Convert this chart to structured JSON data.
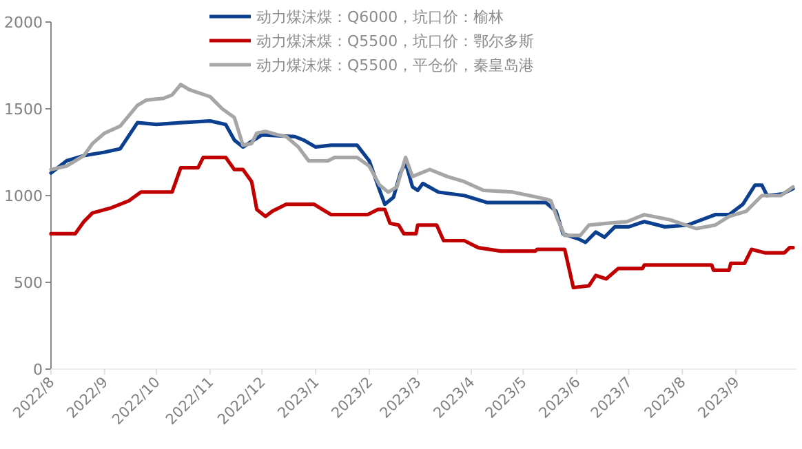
{
  "chart_data": {
    "type": "line",
    "ylim": [
      0,
      2000
    ],
    "yticks": [
      0,
      500,
      1000,
      1500,
      2000
    ],
    "xlim": [
      "2022-08-01",
      "2023-10-06"
    ],
    "xticks": [
      {
        "value": "2022-08-01",
        "label": "2022/8"
      },
      {
        "value": "2022-09-01",
        "label": "2022/9"
      },
      {
        "value": "2022-10-01",
        "label": "2022/10"
      },
      {
        "value": "2022-11-01",
        "label": "2022/11"
      },
      {
        "value": "2022-12-01",
        "label": "2022/12"
      },
      {
        "value": "2023-01-01",
        "label": "2023/1"
      },
      {
        "value": "2023-02-01",
        "label": "2023/2"
      },
      {
        "value": "2023-03-01",
        "label": "2023/3"
      },
      {
        "value": "2023-04-01",
        "label": "2023/4"
      },
      {
        "value": "2023-05-01",
        "label": "2023/5"
      },
      {
        "value": "2023-06-01",
        "label": "2023/6"
      },
      {
        "value": "2023-07-01",
        "label": "2023/7"
      },
      {
        "value": "2023-08-01",
        "label": "2023/8"
      },
      {
        "value": "2023-09-01",
        "label": "2023/9"
      }
    ],
    "grid": false,
    "legend": "top",
    "marker": "none",
    "line_style": "solid",
    "series": [
      {
        "name": "动力煤沫煤：Q6000，坑口价：榆林",
        "color": "#0d3f8f",
        "x": [
          "2022-08-01",
          "2022-08-10",
          "2022-08-20",
          "2022-09-01",
          "2022-09-10",
          "2022-09-20",
          "2022-10-01",
          "2022-10-15",
          "2022-11-01",
          "2022-11-10",
          "2022-11-15",
          "2022-11-20",
          "2022-12-01",
          "2022-12-20",
          "2022-12-25",
          "2023-01-01",
          "2023-01-10",
          "2023-01-25",
          "2023-02-01",
          "2023-02-07",
          "2023-02-10",
          "2023-02-15",
          "2023-02-19",
          "2023-02-22",
          "2023-02-26",
          "2023-03-01",
          "2023-03-04",
          "2023-03-13",
          "2023-03-28",
          "2023-04-10",
          "2023-05-01",
          "2023-05-14",
          "2023-05-20",
          "2023-05-24",
          "2023-06-02",
          "2023-06-06",
          "2023-06-12",
          "2023-06-17",
          "2023-06-23",
          "2023-07-01",
          "2023-07-10",
          "2023-07-22",
          "2023-08-04",
          "2023-08-20",
          "2023-08-28",
          "2023-09-05",
          "2023-09-12",
          "2023-09-16",
          "2023-09-19",
          "2023-09-28",
          "2023-10-04"
        ],
        "values": [
          1130,
          1200,
          1230,
          1250,
          1270,
          1420,
          1410,
          1420,
          1430,
          1410,
          1320,
          1280,
          1350,
          1340,
          1320,
          1280,
          1290,
          1290,
          1200,
          1030,
          950,
          990,
          1130,
          1190,
          1050,
          1030,
          1070,
          1020,
          1000,
          960,
          960,
          960,
          910,
          780,
          750,
          730,
          790,
          760,
          820,
          820,
          850,
          820,
          830,
          890,
          890,
          950,
          1060,
          1060,
          1000,
          1010,
          1040
        ]
      },
      {
        "name": "动力煤沫煤：Q5500，坑口价：鄂尔多斯",
        "color": "#c00000",
        "x": [
          "2022-08-01",
          "2022-08-15",
          "2022-08-20",
          "2022-08-25",
          "2022-09-05",
          "2022-09-15",
          "2022-09-22",
          "2022-10-10",
          "2022-10-15",
          "2022-10-25",
          "2022-10-28",
          "2022-11-10",
          "2022-11-15",
          "2022-11-20",
          "2022-11-25",
          "2022-11-28",
          "2022-12-03",
          "2022-12-07",
          "2022-12-15",
          "2022-12-31",
          "2023-01-05",
          "2023-01-10",
          "2023-01-31",
          "2023-02-06",
          "2023-02-10",
          "2023-02-13",
          "2023-02-18",
          "2023-02-21",
          "2023-02-28",
          "2023-03-01",
          "2023-03-12",
          "2023-03-16",
          "2023-03-28",
          "2023-04-05",
          "2023-04-18",
          "2023-05-08",
          "2023-05-09",
          "2023-05-25",
          "2023-05-30",
          "2023-06-08",
          "2023-06-12",
          "2023-06-18",
          "2023-06-25",
          "2023-07-09",
          "2023-07-10",
          "2023-08-18",
          "2023-08-19",
          "2023-08-28",
          "2023-08-29",
          "2023-09-06",
          "2023-09-10",
          "2023-09-18",
          "2023-09-29",
          "2023-10-02",
          "2023-10-04"
        ],
        "values": [
          780,
          780,
          850,
          900,
          930,
          970,
          1020,
          1020,
          1160,
          1160,
          1220,
          1220,
          1150,
          1150,
          1080,
          920,
          880,
          910,
          950,
          950,
          920,
          890,
          890,
          920,
          920,
          840,
          830,
          780,
          780,
          830,
          830,
          740,
          740,
          700,
          680,
          680,
          690,
          690,
          470,
          480,
          540,
          520,
          580,
          580,
          600,
          600,
          570,
          570,
          610,
          610,
          690,
          670,
          670,
          700,
          700
        ]
      },
      {
        "name": "动力煤沫煤：Q5500，平仓价，秦皇岛港",
        "color": "#a6a6a6",
        "x": [
          "2022-08-01",
          "2022-08-10",
          "2022-08-20",
          "2022-08-25",
          "2022-09-01",
          "2022-09-10",
          "2022-09-20",
          "2022-09-25",
          "2022-10-05",
          "2022-10-10",
          "2022-10-15",
          "2022-10-20",
          "2022-11-01",
          "2022-11-08",
          "2022-11-15",
          "2022-11-20",
          "2022-11-25",
          "2022-11-28",
          "2022-12-03",
          "2022-12-10",
          "2022-12-15",
          "2022-12-22",
          "2022-12-28",
          "2023-01-08",
          "2023-01-12",
          "2023-01-25",
          "2023-02-01",
          "2023-02-07",
          "2023-02-12",
          "2023-02-17",
          "2023-02-22",
          "2023-02-26",
          "2023-03-08",
          "2023-03-18",
          "2023-03-28",
          "2023-04-08",
          "2023-04-25",
          "2023-05-14",
          "2023-05-17",
          "2023-05-21",
          "2023-05-25",
          "2023-06-03",
          "2023-06-08",
          "2023-06-18",
          "2023-06-30",
          "2023-07-10",
          "2023-07-25",
          "2023-08-09",
          "2023-08-20",
          "2023-08-28",
          "2023-09-07",
          "2023-09-16",
          "2023-09-27",
          "2023-10-04"
        ],
        "values": [
          1150,
          1170,
          1230,
          1300,
          1360,
          1400,
          1520,
          1550,
          1560,
          1580,
          1640,
          1610,
          1570,
          1500,
          1450,
          1290,
          1300,
          1360,
          1370,
          1350,
          1340,
          1280,
          1200,
          1200,
          1220,
          1220,
          1170,
          1060,
          1020,
          1050,
          1220,
          1110,
          1150,
          1110,
          1080,
          1030,
          1020,
          980,
          970,
          860,
          770,
          770,
          830,
          840,
          850,
          890,
          860,
          810,
          830,
          880,
          910,
          1000,
          1000,
          1050
        ]
      }
    ]
  }
}
